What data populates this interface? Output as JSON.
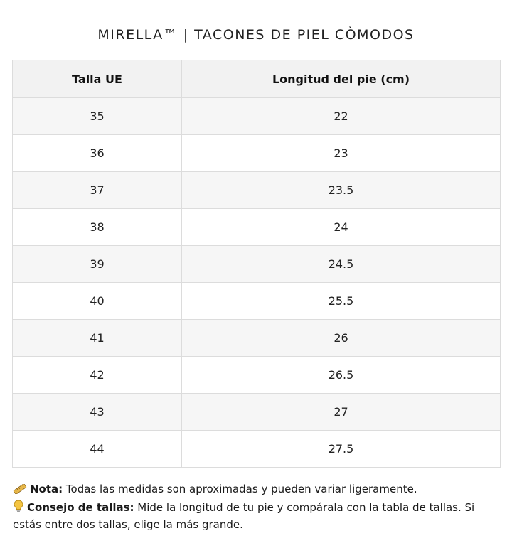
{
  "header": {
    "title": "MIRELLA™ | TACONES DE PIEL CÒMODOS"
  },
  "table": {
    "headers": [
      "Talla UE",
      "Longitud del pie (cm)"
    ],
    "rows": [
      [
        "35",
        "22"
      ],
      [
        "36",
        "23"
      ],
      [
        "37",
        "23.5"
      ],
      [
        "38",
        "24"
      ],
      [
        "39",
        "24.5"
      ],
      [
        "40",
        "25.5"
      ],
      [
        "41",
        "26"
      ],
      [
        "42",
        "26.5"
      ],
      [
        "43",
        "27"
      ],
      [
        "44",
        "27.5"
      ]
    ]
  },
  "notes": {
    "note": {
      "icon": "ruler-icon",
      "label": "Nota:",
      "text": " Todas las medidas son aproximadas y pueden variar ligeramente."
    },
    "tip": {
      "icon": "lightbulb-icon",
      "label": "Consejo de tallas:",
      "text": " Mide la longitud de tu pie y compárala con la tabla de tallas. Si estás entre dos tallas, elige la más grande."
    }
  },
  "colors": {
    "header_bg": "#f2f2f2",
    "odd_row_bg": "#f6f6f6",
    "even_row_bg": "#ffffff",
    "border": "#dcdcdc"
  }
}
